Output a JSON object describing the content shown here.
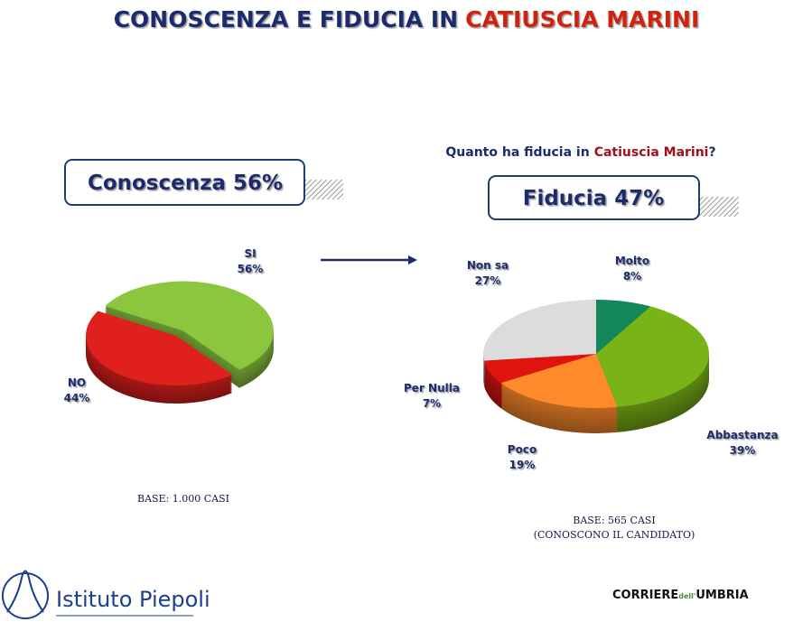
{
  "title": {
    "prefix": "CONOSCENZA E FIDUCIA IN",
    "name": "CATIUSCIA MARINI"
  },
  "chart_data": [
    {
      "type": "pie",
      "headline": "Conoscenza 56%",
      "categories": [
        "SI",
        "NO"
      ],
      "values": [
        56,
        44
      ],
      "value_labels": [
        "56%",
        "44%"
      ],
      "colors": [
        "#8cc63f",
        "#e0201c"
      ],
      "note": [
        "BASE: 1.000 CASI"
      ]
    },
    {
      "type": "pie",
      "question": {
        "before": "Quanto ha fiducia in",
        "name": "Catiuscia Marini",
        "after": "?"
      },
      "headline": "Fiducia 47%",
      "categories": [
        "Molto",
        "Abbastanza",
        "Poco",
        "Per Nulla",
        "Non sa"
      ],
      "values": [
        8,
        39,
        19,
        7,
        27
      ],
      "value_labels": [
        "8%",
        "39%",
        "19%",
        "7%",
        "27%"
      ],
      "colors": [
        "#13865a",
        "#7ab317",
        "#ff8a2b",
        "#e0140f",
        "#dcdcdc"
      ],
      "note": [
        "BASE: 565 CASI",
        "(CONOSCONO IL CANDIDATO)"
      ]
    }
  ],
  "logos": {
    "left": "Istituto Piepoli",
    "right": {
      "a": "CORRIERE",
      "b": "dell'",
      "c": "UMBRIA"
    }
  }
}
